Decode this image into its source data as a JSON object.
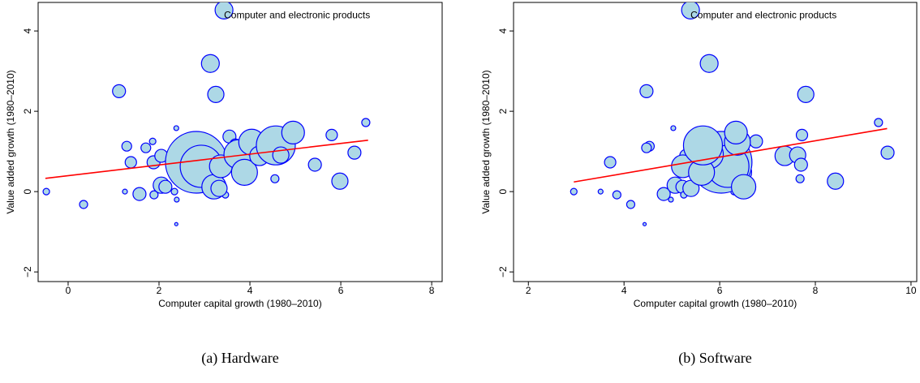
{
  "chart_data": [
    {
      "type": "scatter",
      "caption": "(a) Hardware",
      "xlabel": "Computer capital growth (1980–2010)",
      "ylabel": "Value added growth (1980–2010)",
      "annotation": "Computer and electronic products",
      "xlim": [
        -0.66,
        8.23
      ],
      "ylim": [
        -2.24,
        4.71
      ],
      "xticks": [
        0,
        2,
        4,
        6,
        8
      ],
      "yticks": [
        {
          "value": -2,
          "label": "−2"
        },
        0,
        2,
        4
      ],
      "point_color": "#add8e6",
      "edge_color": "#0000ff",
      "x": [
        -0.48,
        0.34,
        1.12,
        1.29,
        1.25,
        1.38,
        1.71,
        1.86,
        1.88,
        1.89,
        1.57,
        2.05,
        2.05,
        2.14,
        2.29,
        2.38,
        2.34,
        2.39,
        2.38,
        2.54,
        2.64,
        3.13,
        2.82,
        2.93,
        3.21,
        3.25,
        3.43,
        3.36,
        3.55,
        3.46,
        3.32,
        3.68,
        3.75,
        3.88,
        3.93,
        4.04,
        4.21,
        4.55,
        4.57,
        4.68,
        4.95,
        5.43,
        5.8,
        5.98,
        6.3,
        6.55
      ],
      "y": [
        0,
        -0.32,
        2.5,
        1.13,
        0,
        0.73,
        1.09,
        1.25,
        0.73,
        -0.08,
        -0.06,
        0.16,
        0.89,
        0.12,
        0.97,
        1.58,
        0,
        -0.2,
        -0.81,
        0.32,
        0.48,
        3.19,
        0.73,
        0.63,
        0.12,
        2.42,
        4.52,
        0.63,
        1.37,
        -0.08,
        0.08,
        1.17,
        0.93,
        0.48,
        1.25,
        1.23,
        0.89,
        0.32,
        1.15,
        0.91,
        1.47,
        0.67,
        1.41,
        0.26,
        0.97,
        1.72
      ],
      "size": [
        16,
        25,
        64,
        36,
        9,
        49,
        36,
        16,
        64,
        25,
        64,
        100,
        64,
        64,
        36,
        9,
        16,
        9,
        4,
        64,
        196,
        121,
        1444,
        676,
        225,
        100,
        121,
        196,
        64,
        16,
        100,
        49,
        324,
        256,
        64,
        256,
        144,
        25,
        576,
        100,
        196,
        64,
        49,
        100,
        64,
        25
      ],
      "fit": {
        "color": "#ff0000",
        "x": [
          -0.5,
          6.6
        ],
        "y": [
          0.33,
          1.28
        ]
      }
    },
    {
      "type": "scatter",
      "caption": "(b) Software",
      "xlabel": "Computer capital growth (1980–2010)",
      "ylabel": "Value added growth (1980–2010)",
      "annotation": "Computer and electronic products",
      "xlim": [
        1.69,
        10.12
      ],
      "ylim": [
        -2.24,
        4.71
      ],
      "xticks": [
        2,
        4,
        6,
        8,
        10
      ],
      "yticks": [
        {
          "value": -2,
          "label": "−2"
        },
        0,
        2,
        4
      ],
      "point_color": "#add8e6",
      "edge_color": "#0000ff",
      "x": [
        2.95,
        4.14,
        4.47,
        4.53,
        3.51,
        3.71,
        4.47,
        5.54,
        5.86,
        3.85,
        4.83,
        5.07,
        5.3,
        5.22,
        6.22,
        5.03,
        6.3,
        4.98,
        4.43,
        5.85,
        6.43,
        5.78,
        6.03,
        6.17,
        6.5,
        7.8,
        5.39,
        5.23,
        5.7,
        5.25,
        5.4,
        5.81,
        5.77,
        5.62,
        6.76,
        6.37,
        7.36,
        7.68,
        5.65,
        7.63,
        6.34,
        7.7,
        7.72,
        8.42,
        9.51,
        9.32
      ],
      "y": [
        0,
        -0.32,
        2.5,
        1.13,
        0,
        0.73,
        1.09,
        1.25,
        0.73,
        -0.08,
        -0.06,
        0.16,
        0.89,
        0.12,
        0.97,
        1.58,
        0,
        -0.2,
        -0.81,
        0.32,
        0.48,
        3.19,
        0.73,
        0.63,
        0.12,
        2.42,
        4.52,
        0.63,
        1.37,
        -0.08,
        0.08,
        1.17,
        0.93,
        0.48,
        1.25,
        1.23,
        0.89,
        0.32,
        1.15,
        0.91,
        1.47,
        0.67,
        1.41,
        0.26,
        0.97,
        1.72
      ],
      "size": [
        16,
        25,
        64,
        36,
        9,
        49,
        36,
        16,
        64,
        25,
        64,
        100,
        64,
        64,
        36,
        9,
        16,
        9,
        4,
        64,
        196,
        121,
        1444,
        676,
        225,
        100,
        121,
        196,
        64,
        16,
        100,
        49,
        324,
        256,
        64,
        256,
        144,
        25,
        576,
        100,
        196,
        64,
        49,
        100,
        64,
        25
      ],
      "fit": {
        "color": "#ff0000",
        "x": [
          2.95,
          9.5
        ],
        "y": [
          0.24,
          1.57
        ]
      }
    }
  ]
}
